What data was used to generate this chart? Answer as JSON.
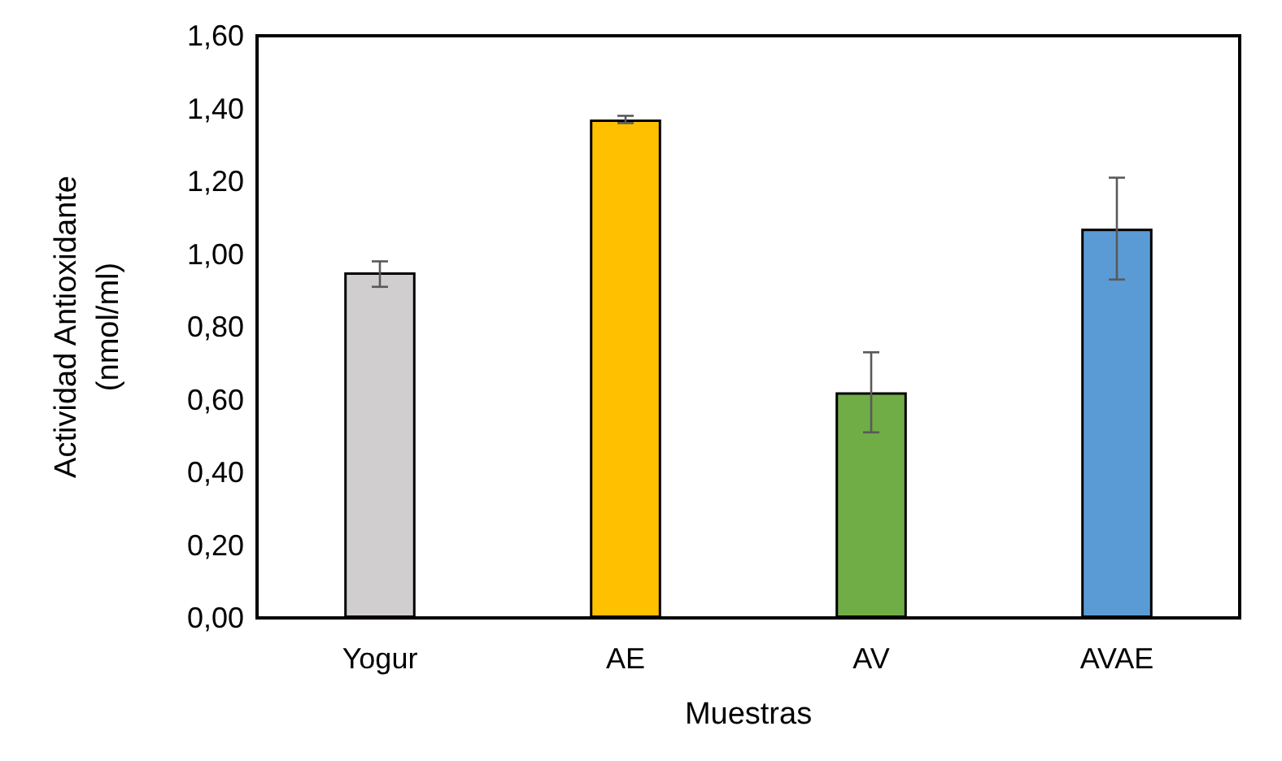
{
  "chart_data": {
    "type": "bar",
    "xlabel": "Muestras",
    "ylabel": "Actividad Antioxidante\n(nmol/ml)",
    "categories": [
      "Yogur",
      "AE",
      "AV",
      "AVAE"
    ],
    "values": [
      0.95,
      1.37,
      0.62,
      1.07
    ],
    "colors": [
      "#d0cece",
      "#ffc000",
      "#70ad47",
      "#5b9bd5"
    ],
    "errors": [
      [
        0.91,
        0.98
      ],
      [
        1.36,
        1.38
      ],
      [
        0.51,
        0.73
      ],
      [
        0.93,
        1.21
      ]
    ],
    "ylim": [
      0,
      1.6
    ],
    "yticks": [
      {
        "value": 0,
        "label": "0,00"
      },
      {
        "value": 0.2,
        "label": "0,20"
      },
      {
        "value": 0.4,
        "label": "0,40"
      },
      {
        "value": 0.6,
        "label": "0,60"
      },
      {
        "value": 0.8,
        "label": "0,80"
      },
      {
        "value": 1.0,
        "label": "1,00"
      },
      {
        "value": 1.2,
        "label": "1,20"
      },
      {
        "value": 1.4,
        "label": "1,40"
      },
      {
        "value": 1.6,
        "label": "1,60"
      }
    ],
    "grid": false
  }
}
